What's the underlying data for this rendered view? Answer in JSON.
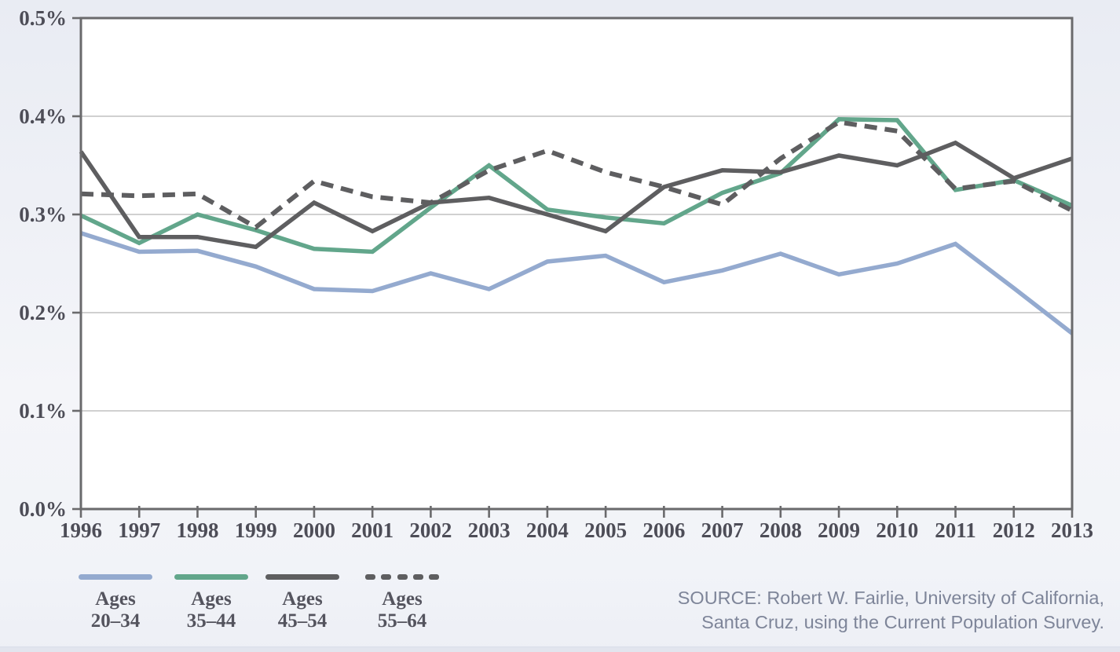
{
  "chart_data": {
    "type": "line",
    "x": [
      "1996",
      "1997",
      "1998",
      "1999",
      "2000",
      "2001",
      "2002",
      "2003",
      "2004",
      "2005",
      "2006",
      "2007",
      "2008",
      "2009",
      "2010",
      "2011",
      "2012",
      "2013"
    ],
    "series": [
      {
        "name": "Ages 20–34",
        "color": "#94aacf",
        "style": "solid",
        "values": [
          0.281,
          0.262,
          0.263,
          0.247,
          0.224,
          0.222,
          0.24,
          0.224,
          0.252,
          0.258,
          0.231,
          0.243,
          0.26,
          0.239,
          0.25,
          0.27,
          0.225,
          0.179
        ]
      },
      {
        "name": "Ages 35–44",
        "color": "#62a68b",
        "style": "solid",
        "values": [
          0.299,
          0.271,
          0.3,
          0.284,
          0.265,
          0.262,
          0.307,
          0.35,
          0.305,
          0.297,
          0.291,
          0.322,
          0.342,
          0.397,
          0.396,
          0.325,
          0.335,
          0.309
        ]
      },
      {
        "name": "Ages 45–54",
        "color": "#5e5e60",
        "style": "solid",
        "values": [
          0.364,
          0.277,
          0.277,
          0.267,
          0.312,
          0.283,
          0.312,
          0.317,
          0.3,
          0.283,
          0.328,
          0.345,
          0.343,
          0.36,
          0.35,
          0.373,
          0.337,
          0.357
        ]
      },
      {
        "name": "Ages 55–64",
        "color": "#5e5e60",
        "style": "dashed",
        "values": [
          0.321,
          0.319,
          0.321,
          0.287,
          0.334,
          0.318,
          0.312,
          0.345,
          0.365,
          0.343,
          0.328,
          0.31,
          0.357,
          0.394,
          0.385,
          0.326,
          0.334,
          0.304
        ]
      }
    ],
    "title": "",
    "xlabel": "",
    "ylabel": "",
    "ylim": [
      0,
      0.5
    ],
    "yticks": [
      0,
      0.1,
      0.2,
      0.3,
      0.4,
      0.5
    ],
    "ytick_labels": [
      "0.0%",
      "0.1%",
      "0.2%",
      "0.3%",
      "0.4%",
      "0.5%"
    ],
    "grid": true,
    "legend_position": "bottom-left",
    "plot_bg": "#ffffff",
    "frame_color": "#6a6a6c",
    "grid_color": "#b3b3b5",
    "tick_label_color": "#4d4d57"
  },
  "legend": {
    "items": [
      {
        "top": "Ages",
        "bottom": "20–34"
      },
      {
        "top": "Ages",
        "bottom": "35–44"
      },
      {
        "top": "Ages",
        "bottom": "45–54"
      },
      {
        "top": "Ages",
        "bottom": "55–64"
      }
    ]
  },
  "source": {
    "line1": "SOURCE: Robert W. Fairlie, University of California,",
    "line2": "Santa Cruz, using the Current Population Survey."
  }
}
